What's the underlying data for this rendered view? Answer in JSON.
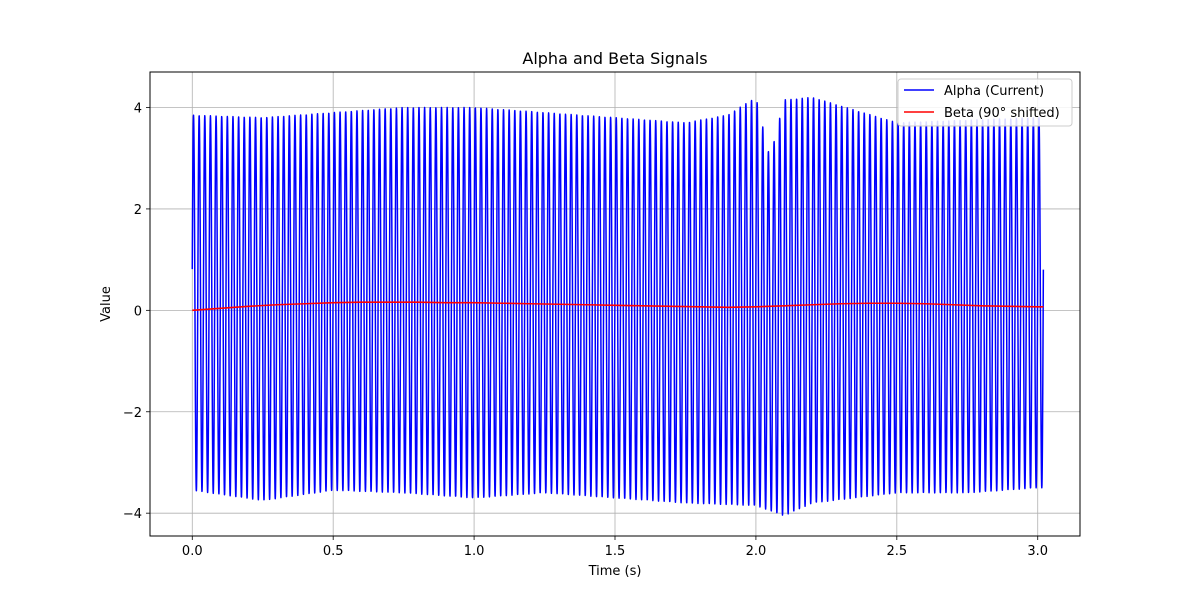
{
  "chart_data": {
    "type": "line",
    "title": "Alpha and Beta Signals",
    "xlabel": "Time (s)",
    "ylabel": "Value",
    "xlim": [
      -0.15,
      3.15
    ],
    "ylim": [
      -4.45,
      4.7
    ],
    "grid": true,
    "legend_position": "top-right",
    "x_ticks": [
      0.0,
      0.5,
      1.0,
      1.5,
      2.0,
      2.5,
      3.0
    ],
    "x_tick_labels": [
      "0.0",
      "0.5",
      "1.0",
      "1.5",
      "2.0",
      "2.5",
      "3.0"
    ],
    "y_ticks": [
      -4,
      -2,
      0,
      2,
      4
    ],
    "y_tick_labels": [
      "−4",
      "−2",
      "0",
      "2",
      "4"
    ],
    "series": [
      {
        "name": "Alpha (Current)",
        "color": "#0000ff",
        "x_start": 0.0,
        "x_end": 3.02,
        "oscillation_frequency_hz": 50,
        "gap_at": 2.05,
        "peaks": {
          "x": [
            0.0,
            0.25,
            0.5,
            0.75,
            1.0,
            1.25,
            1.5,
            1.75,
            1.9,
            2.0,
            2.05,
            2.1,
            2.2,
            2.5,
            2.75,
            3.0
          ],
          "y": [
            3.85,
            3.8,
            3.9,
            4.0,
            4.0,
            3.9,
            3.8,
            3.7,
            3.85,
            4.2,
            3.0,
            4.15,
            4.2,
            3.7,
            3.75,
            3.8
          ]
        },
        "troughs": {
          "x": [
            0.0,
            0.25,
            0.5,
            0.75,
            1.0,
            1.25,
            1.5,
            1.75,
            2.0,
            2.1,
            2.2,
            2.5,
            2.75,
            3.0
          ],
          "y": [
            -3.55,
            -3.75,
            -3.55,
            -3.6,
            -3.7,
            -3.6,
            -3.7,
            -3.8,
            -3.85,
            -4.05,
            -3.8,
            -3.6,
            -3.6,
            -3.5
          ]
        }
      },
      {
        "name": "Beta (90° shifted)",
        "color": "#ff0000",
        "x": [
          0.0,
          0.1,
          0.2,
          0.3,
          0.4,
          0.5,
          0.6,
          0.7,
          0.8,
          0.9,
          1.0,
          1.1,
          1.2,
          1.3,
          1.4,
          1.5,
          1.6,
          1.7,
          1.8,
          1.9,
          2.0,
          2.1,
          2.2,
          2.3,
          2.4,
          2.5,
          2.6,
          2.7,
          2.8,
          2.9,
          3.0,
          3.02
        ],
        "y": [
          0.0,
          0.04,
          0.08,
          0.11,
          0.13,
          0.15,
          0.16,
          0.16,
          0.16,
          0.15,
          0.15,
          0.14,
          0.13,
          0.12,
          0.11,
          0.1,
          0.09,
          0.08,
          0.07,
          0.06,
          0.07,
          0.09,
          0.11,
          0.13,
          0.14,
          0.14,
          0.13,
          0.11,
          0.09,
          0.08,
          0.07,
          0.07
        ]
      }
    ]
  }
}
